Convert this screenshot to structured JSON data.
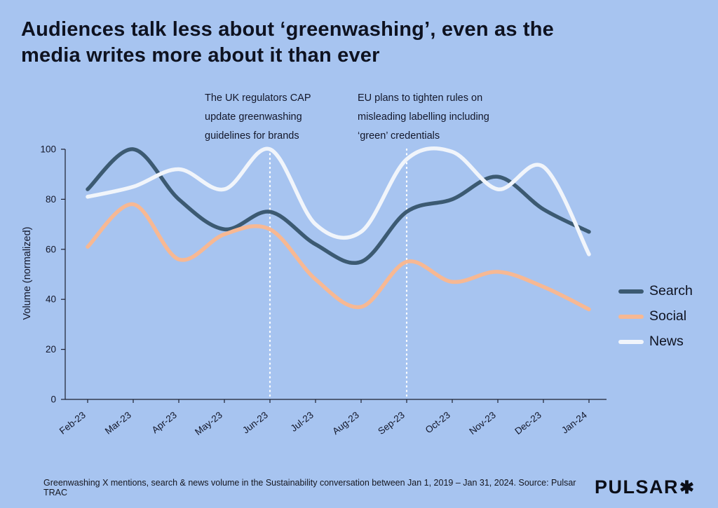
{
  "title": "Audiences talk less about ‘greenwashing’, even as the media writes more about it than ever",
  "annotations": [
    {
      "text": "The UK regulators CAP update greenwashing guidelines for brands",
      "month": "Jun-23"
    },
    {
      "text": "EU plans to tighten rules on misleading labelling including ‘green’ credentials",
      "month": "Sep-23"
    }
  ],
  "chart_data": {
    "type": "line",
    "x": [
      "Feb-23",
      "Mar-23",
      "Apr-23",
      "May-23",
      "Jun-23",
      "Jul-23",
      "Aug-23",
      "Sep-23",
      "Oct-23",
      "Nov-23",
      "Dec-23",
      "Jan-24"
    ],
    "series": [
      {
        "name": "Search",
        "color": "#3c5a72",
        "values": [
          84,
          100,
          80,
          68,
          75,
          62,
          55,
          75,
          80,
          89,
          76,
          67
        ]
      },
      {
        "name": "Social",
        "color": "#f7b893",
        "values": [
          61,
          78,
          56,
          66,
          68,
          48,
          37,
          55,
          47,
          51,
          45,
          36
        ]
      },
      {
        "name": "News",
        "color": "#f1f5fb",
        "values": [
          81,
          85,
          92,
          84,
          100,
          70,
          67,
          96,
          99,
          84,
          93,
          58
        ]
      }
    ],
    "ylabel": "Volume (normalized)",
    "yticks": [
      0,
      20,
      40,
      60,
      80,
      100
    ],
    "ylim": [
      0,
      100
    ],
    "grid": false,
    "legend_position": "right",
    "event_lines": [
      "Jun-23",
      "Sep-23"
    ]
  },
  "footer": {
    "caption": "Greenwashing X mentions,  search & news volume in the Sustainability conversation between Jan 1, 2019 – Jan 31, 2024. Source: Pulsar TRAC",
    "logo": "PULSAR",
    "logo_mark": "✱"
  },
  "colors": {
    "background": "#a7c4f0",
    "text": "#12162a",
    "axis": "#1c2030",
    "event_line": "#ffffff"
  }
}
